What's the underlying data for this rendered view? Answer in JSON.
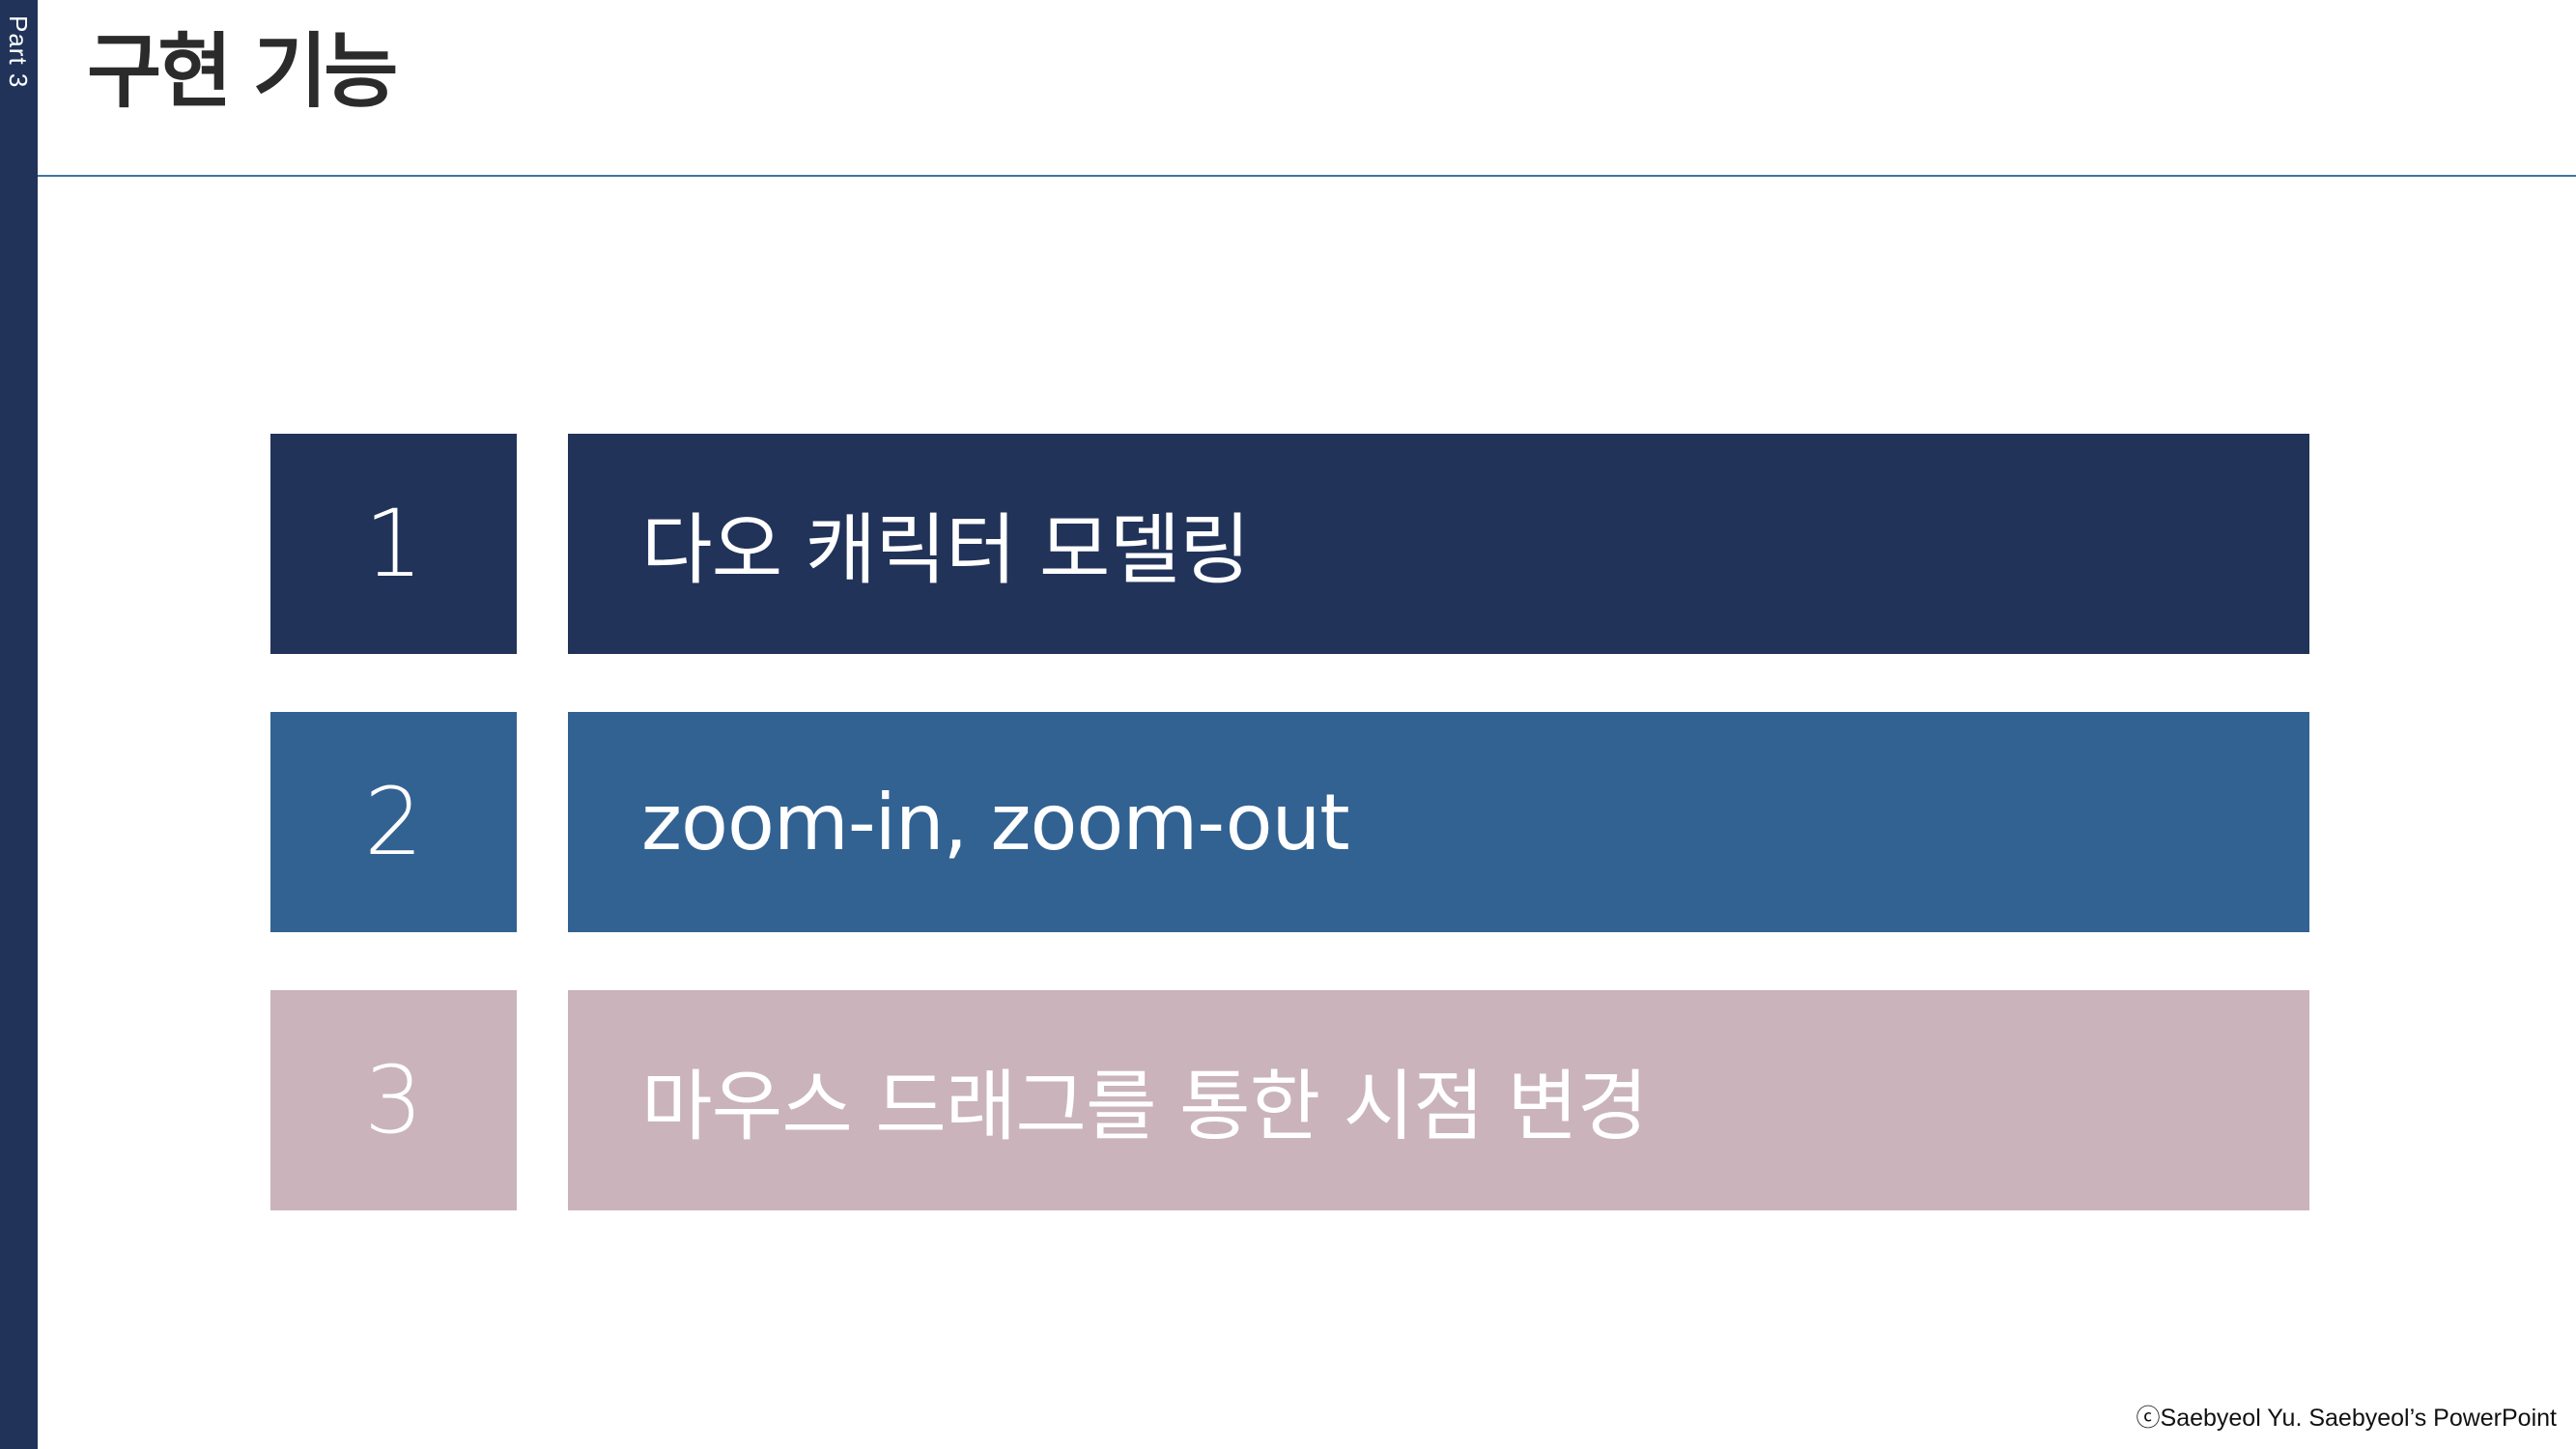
{
  "sidebar": {
    "label": "Part 3",
    "color": "#213359"
  },
  "header": {
    "title": "구현 기능",
    "rule_color": "#3d76a3"
  },
  "features": [
    {
      "number": "1",
      "label": "다오 캐릭터 모델링",
      "color": "#213359"
    },
    {
      "number": "2",
      "label": "zoom-in, zoom-out",
      "color": "#326292"
    },
    {
      "number": "3",
      "label": "마우스 드래그를 통한 시점 변경",
      "color": "#cab3ba"
    }
  ],
  "footer": {
    "copyright": "ⓒSaebyeol Yu. Saebyeol’s PowerPoint"
  }
}
